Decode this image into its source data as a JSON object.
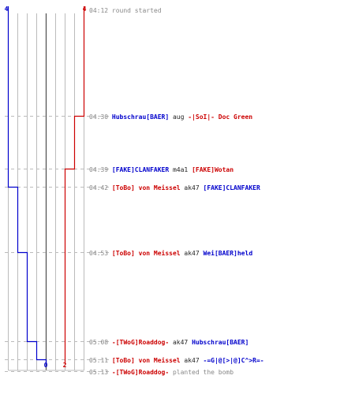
{
  "counts": {
    "blue_start": "4",
    "red_start": "4",
    "blue_end": "0",
    "red_end": "2"
  },
  "colors": {
    "blue": "#0000cc",
    "red": "#cc0000",
    "time": "#888888",
    "grid": "#bbbbbb",
    "center": "#555555",
    "weapon": "#222222",
    "dash": "#bbbbbb"
  },
  "events": [
    {
      "time": "04:12",
      "type": "text",
      "text": "round started",
      "alive_blue": 4,
      "alive_red": 4
    },
    {
      "time": "04:30",
      "type": "kill",
      "killer": "Hubschrau[BAER]",
      "killer_team": "blue",
      "weapon": "aug",
      "victim": "-|SoI|- Doc Green",
      "victim_team": "red",
      "alive_blue": 4,
      "alive_red": 3
    },
    {
      "time": "04:39",
      "type": "kill",
      "killer": "[FAKE]CLANFAKER",
      "killer_team": "blue",
      "weapon": "m4a1",
      "victim": "[FAKE]Wotan",
      "victim_team": "red",
      "alive_blue": 4,
      "alive_red": 2
    },
    {
      "time": "04:42",
      "type": "kill",
      "killer": "[ToBo] von Meissel",
      "killer_team": "red",
      "weapon": "ak47",
      "victim": "[FAKE]CLANFAKER",
      "victim_team": "blue",
      "alive_blue": 3,
      "alive_red": 2
    },
    {
      "time": "04:53",
      "type": "kill",
      "killer": "[ToBo] von Meissel",
      "killer_team": "red",
      "weapon": "ak47",
      "victim": "Wei[BAER]held",
      "victim_team": "blue",
      "alive_blue": 2,
      "alive_red": 2
    },
    {
      "time": "05:08",
      "type": "kill",
      "killer": "-[TWoG]Roaddog-",
      "killer_team": "red",
      "weapon": "ak47",
      "victim": "Hubschrau[BAER]",
      "victim_team": "blue",
      "alive_blue": 1,
      "alive_red": 2
    },
    {
      "time": "05:11",
      "type": "kill",
      "killer": "[ToBo] von Meissel",
      "killer_team": "red",
      "weapon": "ak47",
      "victim": "-=G|@[>|@]C^>R=-",
      "victim_team": "blue",
      "alive_blue": 0,
      "alive_red": 2
    },
    {
      "time": "05:13",
      "type": "action",
      "actor": "-[TWoG]Roaddog-",
      "actor_team": "red",
      "text": "planted the bomb",
      "alive_blue": 0,
      "alive_red": 2
    }
  ]
}
